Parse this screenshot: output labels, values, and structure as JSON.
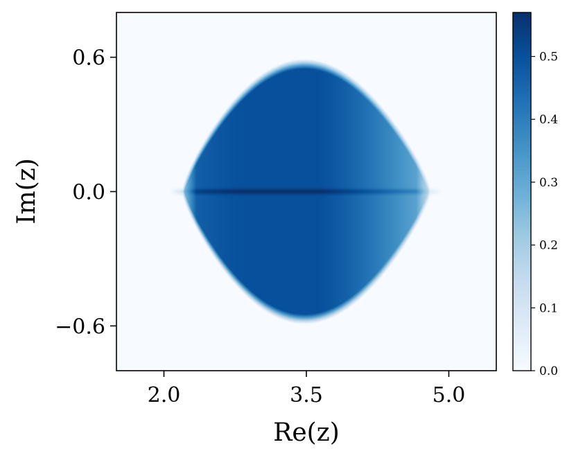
{
  "chart_data": {
    "type": "heatmap",
    "title": "",
    "xlabel": "Re(z)",
    "ylabel": "Im(z)",
    "xlim": [
      1.5,
      5.5
    ],
    "ylim": [
      -0.8,
      0.8
    ],
    "x_ticks": [
      {
        "value": 2.0,
        "label": "2.0"
      },
      {
        "value": 3.5,
        "label": "3.5"
      },
      {
        "value": 5.0,
        "label": "5.0"
      }
    ],
    "y_ticks": [
      {
        "value": 0.6,
        "label": "0.6"
      },
      {
        "value": 0.0,
        "label": "0.0"
      },
      {
        "value": -0.6,
        "label": "−0.6"
      }
    ],
    "support": {
      "real_min": 2.2,
      "real_max": 4.8,
      "center": 3.5,
      "imag_max": 0.57,
      "imag_max_at_real": 3.5
    },
    "density_peak_on_real_axis": 0.57,
    "colormap": "Blues",
    "colors": {
      "low": "#f7fbff",
      "high": "#08306b"
    },
    "colorbar": {
      "min": 0.0,
      "max": 0.57,
      "ticks": [
        {
          "value": 0.0,
          "label": "0.0"
        },
        {
          "value": 0.1,
          "label": "0.1"
        },
        {
          "value": 0.2,
          "label": "0.2"
        },
        {
          "value": 0.3,
          "label": "0.3"
        },
        {
          "value": 0.4,
          "label": "0.4"
        },
        {
          "value": 0.5,
          "label": "0.5"
        }
      ]
    },
    "grid": false
  }
}
